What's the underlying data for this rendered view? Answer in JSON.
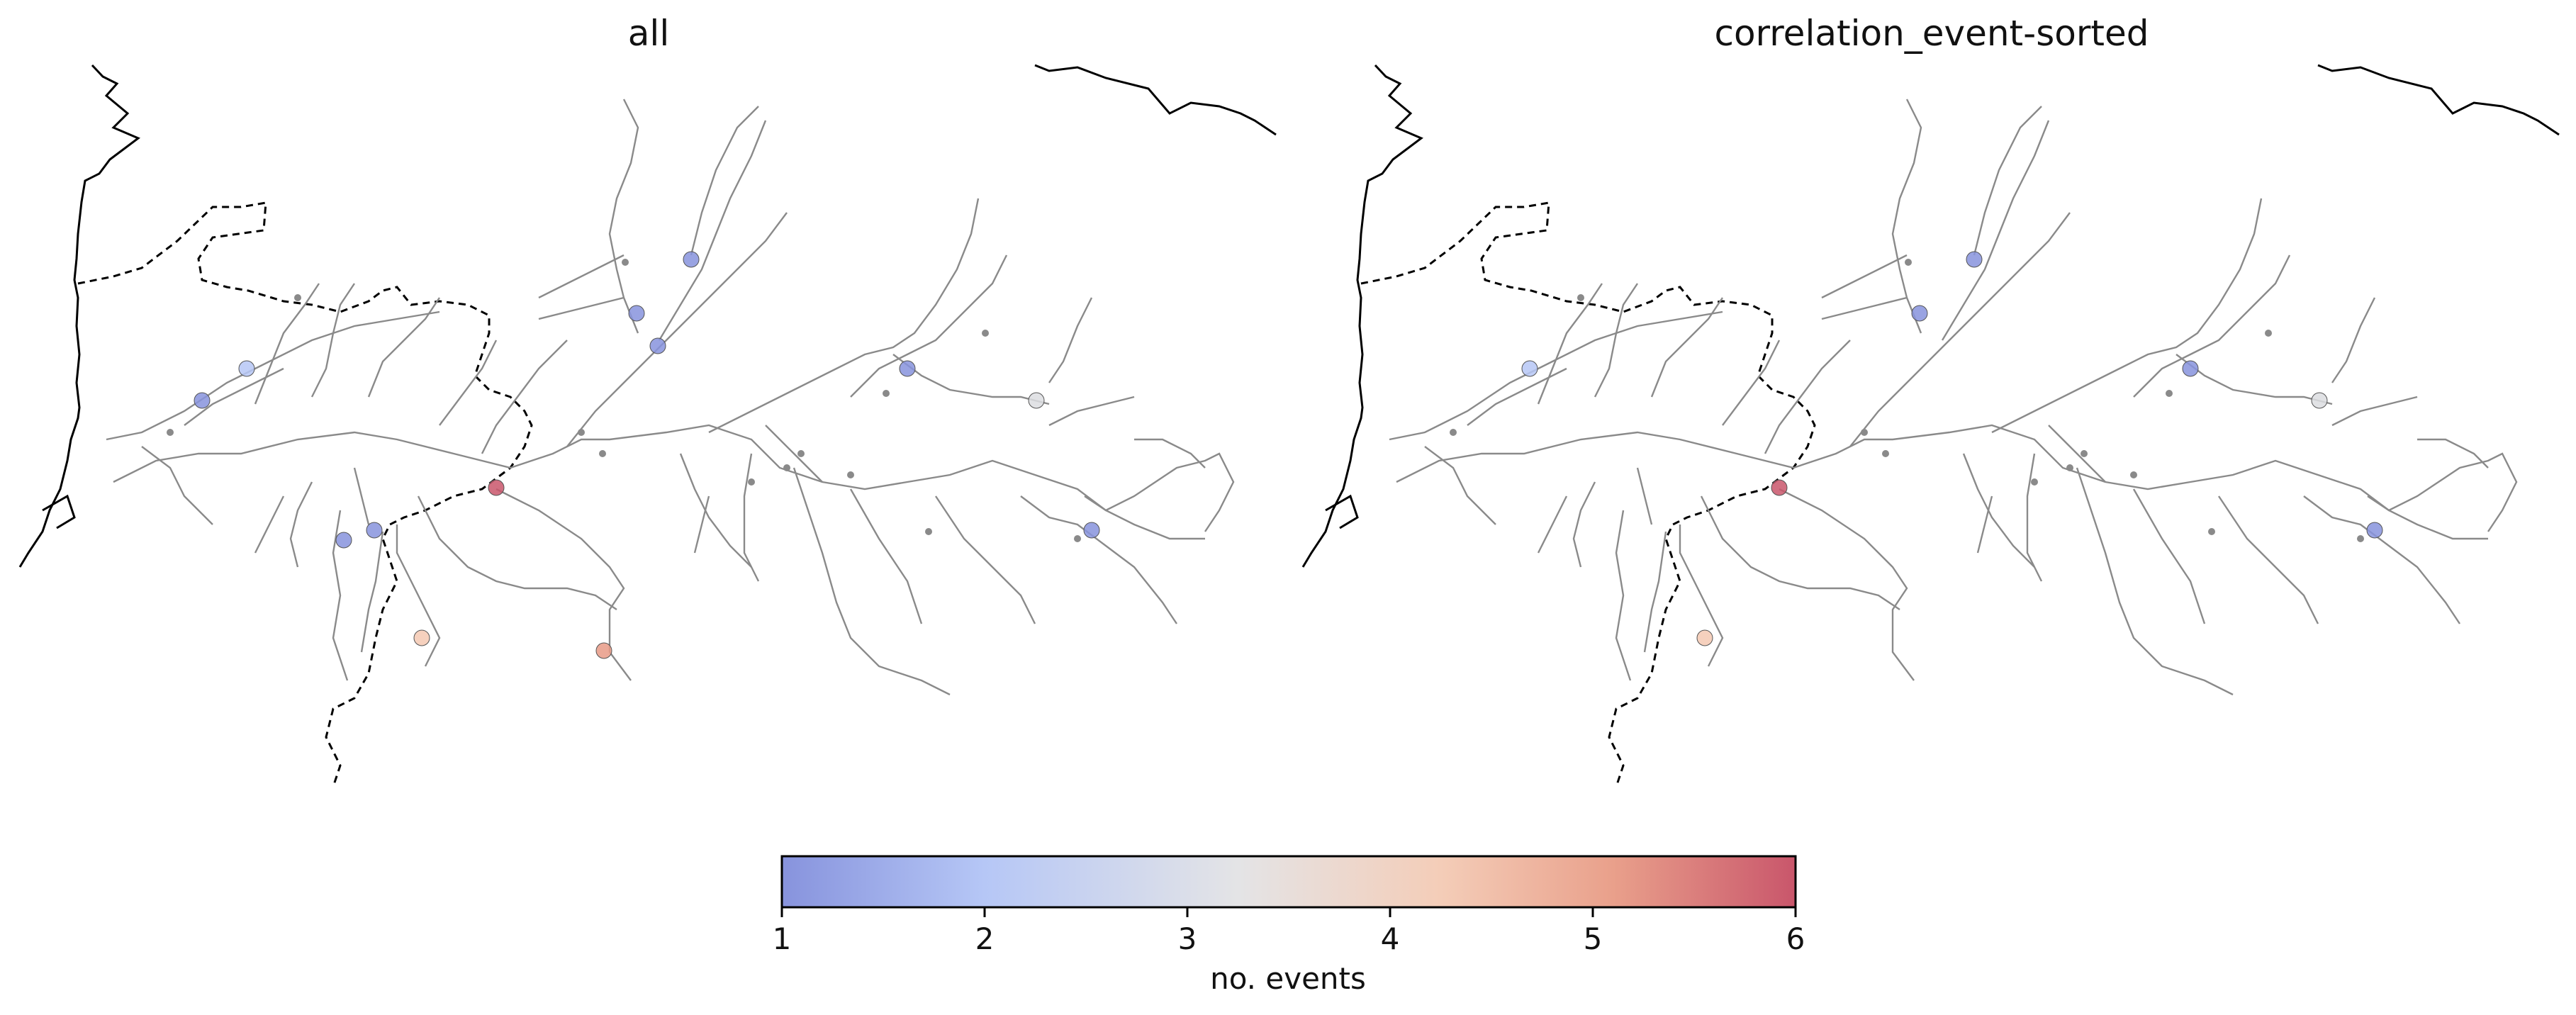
{
  "panels": [
    {
      "title": "all"
    },
    {
      "title": "correlation_event-sorted"
    }
  ],
  "colorbar": {
    "label": "no. events",
    "ticks": [
      "1",
      "2",
      "3",
      "4",
      "5",
      "6"
    ],
    "vmin": 1,
    "vmax": 6,
    "colors": [
      "#8793dd",
      "#b6c7f6",
      "#dcdde1",
      "#f4c9b3",
      "#e89a86",
      "#c9566b"
    ]
  },
  "colors": {
    "river": "#8a8a8a",
    "coast": "#000000",
    "border": "#000000"
  },
  "markers_all": [
    {
      "name": "m1",
      "value": 1
    },
    {
      "name": "m2",
      "value": 1.5
    },
    {
      "name": "m3",
      "value": 1
    },
    {
      "name": "m4",
      "value": 1
    },
    {
      "name": "m5",
      "value": 1
    },
    {
      "name": "m6",
      "value": 1
    },
    {
      "name": "m7",
      "value": 2.5
    },
    {
      "name": "m8",
      "value": 1
    },
    {
      "name": "m9",
      "value": 1
    },
    {
      "name": "m10",
      "value": 6
    },
    {
      "name": "m11",
      "value": 4
    },
    {
      "name": "m12",
      "value": 4.5
    },
    {
      "name": "m13",
      "value": 1
    }
  ],
  "markers_sorted": [
    {
      "name": "s1",
      "value": 1
    },
    {
      "name": "s2",
      "value": 1.5
    },
    {
      "name": "s3",
      "value": 1
    },
    {
      "name": "s4",
      "value": 1
    },
    {
      "name": "s5",
      "value": 2.5
    },
    {
      "name": "s6",
      "value": 1
    },
    {
      "name": "s7",
      "value": 6
    },
    {
      "name": "s8",
      "value": 4
    }
  ]
}
